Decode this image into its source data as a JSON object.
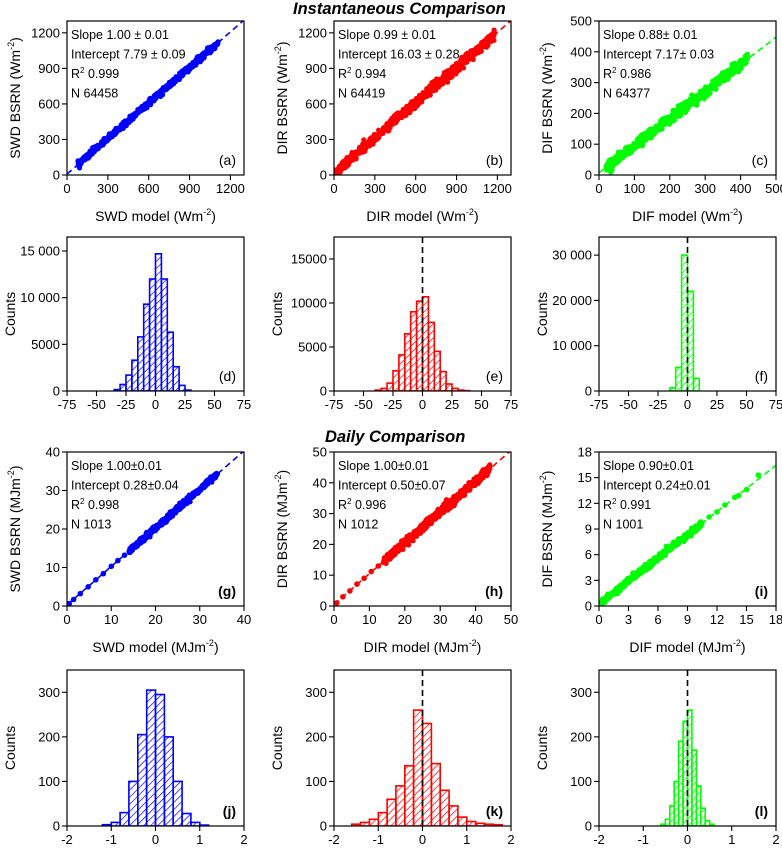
{
  "titles": {
    "instantaneous": "Instantaneous Comparison",
    "daily": "Daily Comparison"
  },
  "chart_data": [
    {
      "type": "scatter",
      "panel": "(a)",
      "color": "#0000ff",
      "xlabel": "SWD model (Wm",
      "xlabel_sup": "-2",
      "xlabel_end": ")",
      "ylabel": "SWD BSRN (Wm",
      "ylabel_sup": "-2",
      "ylabel_end": ")",
      "xlim": [
        0,
        1300
      ],
      "ylim": [
        0,
        1300
      ],
      "xticks": [
        0,
        300,
        600,
        900,
        1200
      ],
      "yticks": [
        0,
        300,
        600,
        900,
        1200
      ],
      "stats": [
        "Slope 1.00 ± 0.01",
        "Intercept 7.79 ± 0.09",
        "R^2 0.999",
        "N 64458"
      ],
      "fit": {
        "slope": 1.0,
        "intercept": 7.79
      },
      "range": [
        80,
        1110
      ],
      "spread": 25
    },
    {
      "type": "scatter",
      "panel": "(b)",
      "color": "#ff0000",
      "xlabel": "DIR model (Wm",
      "xlabel_sup": "-2",
      "xlabel_end": ")",
      "ylabel": "DIR BSRN (Wm",
      "ylabel_sup": "-2",
      "ylabel_end": ")",
      "xlim": [
        0,
        1300
      ],
      "ylim": [
        0,
        1300
      ],
      "xticks": [
        0,
        300,
        600,
        900,
        1200
      ],
      "yticks": [
        0,
        300,
        600,
        900,
        1200
      ],
      "stats": [
        "Slope 0.99 ± 0.01",
        "Intercept 16.03 ± 0.28",
        "R^2 0.994",
        "N 64419"
      ],
      "fit": {
        "slope": 0.99,
        "intercept": 16.03
      },
      "range": [
        5,
        1180
      ],
      "spread": 45
    },
    {
      "type": "scatter",
      "panel": "(c)",
      "color": "#00ff00",
      "xlabel": "DIF model (Wm",
      "xlabel_sup": "-2",
      "xlabel_end": ")",
      "ylabel": "DIF BSRN (Wm",
      "ylabel_sup": "-2",
      "ylabel_end": ")",
      "xlim": [
        0,
        500
      ],
      "ylim": [
        0,
        500
      ],
      "xticks": [
        0,
        100,
        200,
        300,
        400,
        500
      ],
      "yticks": [
        0,
        100,
        200,
        300,
        400,
        500
      ],
      "stats": [
        "Slope  0.88± 0.01",
        "Intercept  7.17± 0.03",
        "R^2 0.986",
        "N 64377"
      ],
      "fit": {
        "slope": 0.88,
        "intercept": 7.17
      },
      "range": [
        20,
        420
      ],
      "spread": 18
    },
    {
      "type": "bar",
      "panel": "(d)",
      "color": "#0000ff",
      "ylabel": "Counts",
      "xlim": [
        -75,
        75
      ],
      "ylim": [
        0,
        16500
      ],
      "xticks": [
        -75,
        -50,
        -25,
        0,
        25,
        50,
        75
      ],
      "yticks": [
        0,
        5000,
        10000,
        15000
      ],
      "ytick_labels": [
        "0",
        "5000",
        "10 000",
        "15 000"
      ],
      "bin_width": 5,
      "bin_centers": [
        -32.5,
        -27.5,
        -22.5,
        -17.5,
        -12.5,
        -7.5,
        -2.5,
        2.5,
        7.5,
        12.5,
        17.5,
        22.5,
        27.5
      ],
      "counts": [
        150,
        700,
        1700,
        3300,
        5800,
        9300,
        12000,
        14700,
        12000,
        6300,
        2600,
        600,
        100
      ],
      "zero_line": false
    },
    {
      "type": "bar",
      "panel": "(e)",
      "color": "#ff0000",
      "ylabel": "Counts",
      "xlim": [
        -75,
        75
      ],
      "ylim": [
        0,
        17500
      ],
      "xticks": [
        -75,
        -50,
        -25,
        0,
        25,
        50,
        75
      ],
      "yticks": [
        0,
        5000,
        10000,
        15000
      ],
      "ytick_labels": [
        "0",
        "5000",
        "10000",
        "15000"
      ],
      "bin_width": 5,
      "bin_centers": [
        -37.5,
        -32.5,
        -27.5,
        -22.5,
        -17.5,
        -12.5,
        -7.5,
        -2.5,
        2.5,
        7.5,
        12.5,
        17.5,
        22.5,
        27.5,
        32.5,
        37.5
      ],
      "counts": [
        100,
        300,
        900,
        2300,
        4100,
        6500,
        9000,
        10200,
        10700,
        7800,
        4500,
        2200,
        800,
        300,
        100,
        30
      ],
      "zero_line": true
    },
    {
      "type": "bar",
      "panel": "(f)",
      "color": "#00ff00",
      "ylabel": "Counts",
      "xlim": [
        -75,
        75
      ],
      "ylim": [
        0,
        34000
      ],
      "xticks": [
        -75,
        -50,
        -25,
        0,
        25,
        50,
        75
      ],
      "yticks": [
        0,
        10000,
        20000,
        30000
      ],
      "ytick_labels": [
        "0",
        "10 000",
        "20 000",
        "30 000"
      ],
      "bin_width": 5,
      "bin_centers": [
        -12.5,
        -7.5,
        -2.5,
        2.5,
        7.5
      ],
      "counts": [
        700,
        5200,
        30000,
        22000,
        2800
      ],
      "zero_line": true
    },
    {
      "type": "scatter",
      "panel": "(g)",
      "panel_bold": true,
      "color": "#0000ff",
      "xlabel": "SWD model (MJm",
      "xlabel_sup": "-2",
      "xlabel_end": ")",
      "ylabel": "SWD BSRN (MJm",
      "ylabel_sup": "-2",
      "ylabel_end": ")",
      "xlim": [
        0,
        40
      ],
      "ylim": [
        0,
        40
      ],
      "xticks": [
        0,
        10,
        20,
        30,
        40
      ],
      "yticks": [
        0,
        10,
        20,
        30,
        40
      ],
      "stats": [
        "Slope 1.00±0.01",
        "Intercept 0.28±0.04",
        "R^2 0.998",
        "N 1013"
      ],
      "fit": {
        "slope": 1.0,
        "intercept": 0.28
      },
      "range": [
        14,
        34
      ],
      "spread": 0.7,
      "extra_points": [
        [
          0.5,
          0.6
        ],
        [
          1.5,
          1.7
        ],
        [
          3,
          3.2
        ],
        [
          4.8,
          5.0
        ],
        [
          6.5,
          6.8
        ],
        [
          8.2,
          8.4
        ],
        [
          10,
          10.3
        ],
        [
          11.5,
          11.8
        ],
        [
          13,
          13.2
        ]
      ]
    },
    {
      "type": "scatter",
      "panel": "(h)",
      "panel_bold": true,
      "color": "#ff0000",
      "xlabel": "DIR model (MJm",
      "xlabel_sup": "-2",
      "xlabel_end": ")",
      "ylabel": "DIR BSRN (MJm",
      "ylabel_sup": "-2",
      "ylabel_end": ")",
      "xlim": [
        0,
        50
      ],
      "ylim": [
        0,
        50
      ],
      "xticks": [
        0,
        10,
        20,
        30,
        40,
        50
      ],
      "yticks": [
        0,
        10,
        20,
        30,
        40,
        50
      ],
      "stats": [
        "Slope 1.00±0.01",
        "Intercept 0.50±0.07",
        "R^2 0.996",
        "N 1012"
      ],
      "fit": {
        "slope": 1.0,
        "intercept": 0.5
      },
      "range": [
        14,
        44
      ],
      "spread": 1.4,
      "extra_points": [
        [
          0.8,
          1.0
        ],
        [
          2.5,
          3.0
        ],
        [
          4.5,
          4.9
        ],
        [
          6.5,
          7.1
        ],
        [
          8.5,
          9.0
        ],
        [
          10.5,
          11.2
        ],
        [
          12.5,
          13.0
        ]
      ]
    },
    {
      "type": "scatter",
      "panel": "(i)",
      "panel_bold": true,
      "color": "#00ff00",
      "xlabel": "DIF model (MJm",
      "xlabel_sup": "-2",
      "xlabel_end": ")",
      "ylabel": "DIF BSRN (MJm",
      "ylabel_sup": "-2",
      "ylabel_end": ")",
      "xlim": [
        0,
        18
      ],
      "ylim": [
        0,
        18
      ],
      "xticks": [
        0,
        3,
        6,
        9,
        12,
        15,
        18
      ],
      "yticks": [
        0,
        3,
        6,
        9,
        12,
        15,
        18
      ],
      "stats": [
        "Slope 0.90±0.01",
        "Intercept 0.24±0.01",
        "R^2 0.991",
        "N 1001"
      ],
      "fit": {
        "slope": 0.9,
        "intercept": 0.24
      },
      "range": [
        0.3,
        10.5
      ],
      "spread": 0.35,
      "extra_points": [
        [
          11.2,
          10.4
        ],
        [
          12,
          11.0
        ],
        [
          12.8,
          11.8
        ],
        [
          13.8,
          12.7
        ],
        [
          15,
          13.6
        ],
        [
          16.2,
          15.3
        ],
        [
          14.2,
          12.9
        ]
      ]
    },
    {
      "type": "bar",
      "panel": "(j)",
      "panel_bold": true,
      "color": "#0000ff",
      "ylabel": "Counts",
      "xlim": [
        -2,
        2
      ],
      "ylim": [
        0,
        350
      ],
      "xticks": [
        -2,
        -1,
        0,
        1,
        2
      ],
      "yticks": [
        0,
        100,
        200,
        300
      ],
      "ytick_labels": [
        "0",
        "100",
        "200",
        "300"
      ],
      "bin_width": 0.2,
      "bin_centers": [
        -1.1,
        -0.9,
        -0.7,
        -0.5,
        -0.3,
        -0.1,
        0.1,
        0.3,
        0.5,
        0.7,
        0.9,
        1.1
      ],
      "counts": [
        3,
        8,
        30,
        100,
        205,
        305,
        295,
        200,
        100,
        28,
        8,
        2
      ],
      "zero_line": false
    },
    {
      "type": "bar",
      "panel": "(k)",
      "panel_bold": true,
      "color": "#ff0000",
      "ylabel": "Counts",
      "xlim": [
        -2,
        2
      ],
      "ylim": [
        0,
        350
      ],
      "xticks": [
        -2,
        -1,
        0,
        1,
        2
      ],
      "yticks": [
        0,
        100,
        200,
        300
      ],
      "ytick_labels": [
        "0",
        "100",
        "200",
        "300"
      ],
      "bin_width": 0.2,
      "bin_centers": [
        -1.5,
        -1.3,
        -1.1,
        -0.9,
        -0.7,
        -0.5,
        -0.3,
        -0.1,
        0.1,
        0.3,
        0.5,
        0.7,
        0.9,
        1.1,
        1.3,
        1.5,
        1.7
      ],
      "counts": [
        4,
        8,
        15,
        30,
        60,
        90,
        135,
        260,
        230,
        140,
        80,
        45,
        20,
        10,
        6,
        4,
        3
      ],
      "zero_line": true
    },
    {
      "type": "bar",
      "panel": "(l)",
      "panel_bold": true,
      "color": "#00ff00",
      "ylabel": "Counts",
      "xlim": [
        -2,
        2
      ],
      "ylim": [
        0,
        350
      ],
      "xticks": [
        -2,
        -1,
        0,
        1,
        2
      ],
      "yticks": [
        0,
        100,
        200,
        300
      ],
      "ytick_labels": [
        "0",
        "100",
        "200",
        "300"
      ],
      "bin_width": 0.1,
      "bin_centers": [
        -0.55,
        -0.45,
        -0.35,
        -0.25,
        -0.15,
        -0.05,
        0.05,
        0.15,
        0.25,
        0.35,
        0.45,
        0.55
      ],
      "counts": [
        4,
        15,
        45,
        100,
        190,
        235,
        260,
        170,
        90,
        40,
        12,
        4
      ],
      "zero_line": true
    }
  ]
}
